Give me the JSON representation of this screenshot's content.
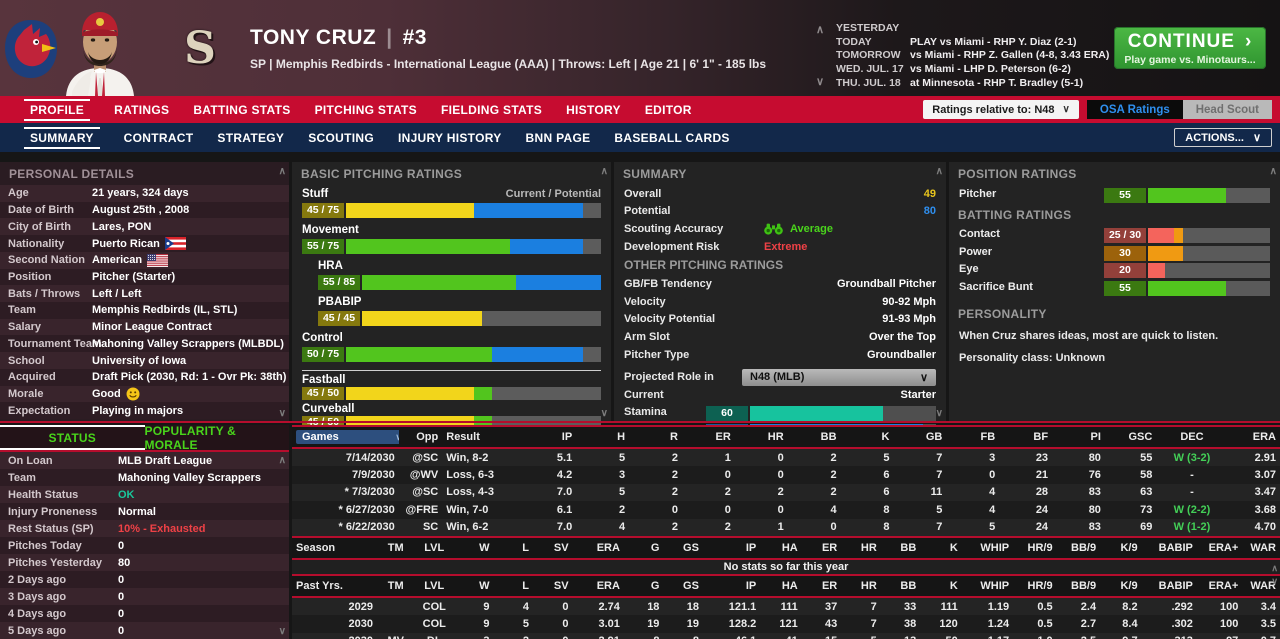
{
  "header": {
    "player_name": "TONY CRUZ",
    "pipe": "|",
    "jersey_number": "#3",
    "subtitle": "SP | Memphis Redbirds - International League (AAA) | Throws: Left | Age 21 | 6' 1\" - 185 lbs",
    "schedule": [
      {
        "label": "YESTERDAY",
        "value": ""
      },
      {
        "label": "TODAY",
        "value": "PLAY vs Miami - RHP Y. Diaz (2-1)"
      },
      {
        "label": "TOMORROW",
        "value": "vs Miami - RHP Z. Gallen (4-8, 3.43 ERA)"
      },
      {
        "label": "WED. JUL. 17",
        "value": "vs Miami - LHP D. Peterson (6-2)"
      },
      {
        "label": "THU. JUL. 18",
        "value": "at Minnesota - RHP T. Bradley (5-1)"
      }
    ],
    "continue_button": {
      "label": "CONTINUE",
      "sublabel": "Play game vs. Minotaurs...",
      "arrow": "›"
    }
  },
  "icons": {
    "chevron_down": "∨",
    "chevron_up": "∧"
  },
  "nav": {
    "primary": [
      "PROFILE",
      "RATINGS",
      "BATTING STATS",
      "PITCHING STATS",
      "FIELDING STATS",
      "HISTORY",
      "EDITOR"
    ],
    "primary_active": "PROFILE",
    "ratings_dropdown": "Ratings relative to: N48",
    "osa_button": "OSA Ratings",
    "head_scout_button": "Head Scout",
    "secondary": [
      "SUMMARY",
      "CONTRACT",
      "STRATEGY",
      "SCOUTING",
      "INJURY HISTORY",
      "BNN PAGE",
      "BASEBALL CARDS"
    ],
    "secondary_active": "SUMMARY",
    "actions_button": "ACTIONS..."
  },
  "personal_details": {
    "title": "PERSONAL DETAILS",
    "rows": [
      {
        "label": "Age",
        "value": "21 years, 324 days"
      },
      {
        "label": "Date of Birth",
        "value": "August 25th , 2008"
      },
      {
        "label": "City of Birth",
        "value": "Lares, PON"
      },
      {
        "label": "Nationality",
        "value": "Puerto Rican",
        "flag": "pr"
      },
      {
        "label": "Second Nation",
        "value": "American",
        "flag": "us"
      },
      {
        "label": "Position",
        "value": "Pitcher (Starter)"
      },
      {
        "label": "Bats / Throws",
        "value": "Left / Left"
      },
      {
        "label": "Team",
        "value": "Memphis Redbirds (IL, STL)"
      },
      {
        "label": "Salary",
        "value": "Minor League Contract"
      },
      {
        "label": "Tournament Team",
        "value": "Mahoning Valley Scrappers (MLBDL)"
      },
      {
        "label": "School",
        "value": "University of Iowa"
      },
      {
        "label": "Acquired",
        "value": "Draft Pick (2030, Rd: 1 - Ovr Pk: 38th)"
      },
      {
        "label": "Morale",
        "value": "Good",
        "icon": "smiley"
      },
      {
        "label": "Expectation",
        "value": "Playing in majors"
      }
    ]
  },
  "pitching_ratings": {
    "title": "BASIC PITCHING RATINGS",
    "scale_note": "Current / Potential",
    "core": [
      {
        "label": "Stuff",
        "cur": 45,
        "pot": 75,
        "indent": false
      },
      {
        "label": "Movement",
        "cur": 55,
        "pot": 75,
        "indent": false
      },
      {
        "label": "HRA",
        "cur": 55,
        "pot": 85,
        "indent": true
      },
      {
        "label": "PBABIP",
        "cur": 45,
        "pot": 45,
        "indent": true
      },
      {
        "label": "Control",
        "cur": 50,
        "pot": 75,
        "indent": false
      }
    ],
    "pitches": [
      {
        "label": "Fastball",
        "cur": 45,
        "pot": 50
      },
      {
        "label": "Curveball",
        "cur": 45,
        "pot": 50
      }
    ],
    "partial_pitch": "Changeup"
  },
  "summary_panel": {
    "title": "SUMMARY",
    "overall_label": "Overall",
    "overall_value": "49",
    "potential_label": "Potential",
    "potential_value": "80",
    "accuracy_label": "Scouting Accuracy",
    "accuracy_value": "Average",
    "risk_label": "Development Risk",
    "risk_value": "Extreme",
    "other_title": "OTHER PITCHING RATINGS",
    "other_rows": [
      {
        "label": "GB/FB Tendency",
        "value": "Groundball Pitcher"
      },
      {
        "label": "Velocity",
        "value": "90-92 Mph"
      },
      {
        "label": "Velocity Potential",
        "value": "91-93 Mph"
      },
      {
        "label": "Arm Slot",
        "value": "Over the Top"
      },
      {
        "label": "Pitcher Type",
        "value": "Groundballer"
      }
    ],
    "projected_label": "Projected Role in",
    "projected_value": "N48 (MLB)",
    "current_label": "Current",
    "current_value": "Starter",
    "stamina_label": "Stamina",
    "stamina_value": 60,
    "hold_value": 75
  },
  "position_ratings": {
    "title": "POSITION RATINGS",
    "rows": [
      {
        "label": "Pitcher",
        "cur": 55,
        "pot": 55
      }
    ]
  },
  "batting_ratings": {
    "title": "BATTING RATINGS",
    "rows": [
      {
        "label": "Contact",
        "cur": 25,
        "pot": 30
      },
      {
        "label": "Power",
        "cur": 30,
        "pot": 30
      },
      {
        "label": "Eye",
        "cur": 20,
        "pot": 20
      },
      {
        "label": "Sacrifice Bunt",
        "cur": 55,
        "pot": 55
      }
    ]
  },
  "personality": {
    "title": "PERSONALITY",
    "text": "When Cruz shares ideas, most are quick to listen.",
    "class_line": "Personality class: Unknown"
  },
  "status_panel": {
    "tabs": [
      "STATUS",
      "POPULARITY & MORALE"
    ],
    "active_tab": "STATUS",
    "rows": [
      {
        "label": "On Loan",
        "value": "MLB Draft League"
      },
      {
        "label": "Team",
        "value": "Mahoning Valley Scrappers"
      },
      {
        "label": "Health Status",
        "value": "OK",
        "tone": "ok"
      },
      {
        "label": "Injury Proneness",
        "value": "Normal"
      },
      {
        "label": "Rest Status (SP)",
        "value": "10% - Exhausted",
        "tone": "red"
      },
      {
        "label": "Pitches Today",
        "value": "0"
      },
      {
        "label": "Pitches Yesterday",
        "value": "80"
      },
      {
        "label": "2 Days ago",
        "value": "0"
      },
      {
        "label": "3 Days ago",
        "value": "0"
      },
      {
        "label": "4 Days ago",
        "value": "0"
      },
      {
        "label": "5 Days ago",
        "value": "0"
      }
    ]
  },
  "games_table": {
    "columns": [
      "Games",
      "Opp",
      "Result",
      "IP",
      "H",
      "R",
      "ER",
      "HR",
      "BB",
      "K",
      "GB",
      "FB",
      "BF",
      "PI",
      "GSC",
      "DEC",
      "ERA"
    ],
    "rows": [
      [
        "7/14/2030",
        "@SC",
        "Win, 8-2",
        "5.1",
        "5",
        "2",
        "1",
        "0",
        "2",
        "5",
        "7",
        "3",
        "23",
        "80",
        "55",
        "W (3-2)",
        "2.91"
      ],
      [
        "7/9/2030",
        "@WV",
        "Loss, 6-3",
        "4.2",
        "3",
        "2",
        "0",
        "0",
        "2",
        "6",
        "7",
        "0",
        "21",
        "76",
        "58",
        "-",
        "3.07"
      ],
      [
        "* 7/3/2030",
        "@SC",
        "Loss, 4-3",
        "7.0",
        "5",
        "2",
        "2",
        "2",
        "2",
        "6",
        "11",
        "4",
        "28",
        "83",
        "63",
        "-",
        "3.47"
      ],
      [
        "* 6/27/2030",
        "@FRE",
        "Win, 7-0",
        "6.1",
        "2",
        "0",
        "0",
        "0",
        "4",
        "8",
        "5",
        "4",
        "24",
        "80",
        "73",
        "W (2-2)",
        "3.68"
      ],
      [
        "* 6/22/2030",
        "SC",
        "Win, 6-2",
        "7.0",
        "4",
        "2",
        "2",
        "1",
        "0",
        "8",
        "7",
        "5",
        "24",
        "83",
        "69",
        "W (1-2)",
        "4.70"
      ]
    ]
  },
  "season_table": {
    "columns": [
      "Season",
      "TM",
      "LVL",
      "W",
      "L",
      "SV",
      "ERA",
      "G",
      "GS",
      "IP",
      "HA",
      "ER",
      "HR",
      "BB",
      "K",
      "WHIP",
      "HR/9",
      "BB/9",
      "K/9",
      "BABIP",
      "ERA+",
      "WAR"
    ],
    "empty_message": "No stats so far this year"
  },
  "past_table": {
    "columns": [
      "Past Yrs.",
      "TM",
      "LVL",
      "W",
      "L",
      "SV",
      "ERA",
      "G",
      "GS",
      "IP",
      "HA",
      "ER",
      "HR",
      "BB",
      "K",
      "WHIP",
      "HR/9",
      "BB/9",
      "K/9",
      "BABIP",
      "ERA+",
      "WAR"
    ],
    "rows": [
      [
        "2029",
        "",
        "COL",
        "9",
        "4",
        "0",
        "2.74",
        "18",
        "18",
        "121.1",
        "111",
        "37",
        "7",
        "33",
        "111",
        "1.19",
        "0.5",
        "2.4",
        "8.2",
        ".292",
        "100",
        "3.4"
      ],
      [
        "2030",
        "",
        "COL",
        "9",
        "5",
        "0",
        "3.01",
        "19",
        "19",
        "128.2",
        "121",
        "43",
        "7",
        "38",
        "120",
        "1.24",
        "0.5",
        "2.7",
        "8.4",
        ".302",
        "100",
        "3.5"
      ],
      [
        "2030",
        "MV",
        "DL",
        "3",
        "2",
        "0",
        "2.91",
        "8",
        "8",
        "46.1",
        "41",
        "15",
        "5",
        "13",
        "50",
        "1.17",
        "1.0",
        "2.5",
        "9.7",
        ".313",
        "97",
        "0.7"
      ]
    ]
  },
  "colors": {
    "brand_red": "#c60c30",
    "brand_navy": "#12284a",
    "line_red": "#b50d2d",
    "continue_green": "#3fae3a",
    "win_green": "#43cf57",
    "status_ok": "#19c79b",
    "danger": "#ef4146",
    "overall_yellow": "#e8c51d",
    "potential_blue": "#2f8fef",
    "accuracy_green": "#4ad41c",
    "bar_yellow": "#f2d51b",
    "bar_green": "#52c51e",
    "bar_blue": "#1b7fe0",
    "bar_teal": "#17c39e",
    "bar_salmon": "#f4645c",
    "bar_orange": "#f09a12"
  }
}
